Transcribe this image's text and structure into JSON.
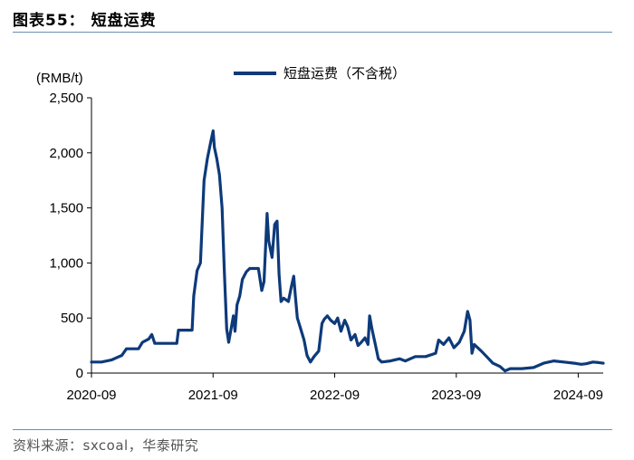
{
  "header": {
    "title": "图表55：  短盘运费"
  },
  "footer": {
    "source": "资料来源：sxcoal，华泰研究"
  },
  "chart_data": {
    "type": "line",
    "title": "",
    "ylabel": "(RMB/t)",
    "xlabel": "",
    "ylim": [
      0,
      2500
    ],
    "y_ticks": [
      0,
      500,
      1000,
      1500,
      2000,
      2500
    ],
    "y_tick_labels": [
      "0",
      "500",
      "1,000",
      "1,500",
      "2,000",
      "2,500"
    ],
    "x_ticks": [
      "2020-09-01",
      "2021-09-01",
      "2022-09-01",
      "2023-09-01",
      "2024-09-01"
    ],
    "x_tick_labels": [
      "2020-09",
      "2021-09",
      "2022-09",
      "2023-09",
      "2024-09"
    ],
    "legend_position": "top-center",
    "grid": false,
    "colors": {
      "series": "#0d3a7a",
      "axis": "#000000"
    },
    "series": [
      {
        "name": "短盘运费（不含税）",
        "points": [
          [
            "2020-09-01",
            100
          ],
          [
            "2020-10-01",
            100
          ],
          [
            "2020-11-01",
            120
          ],
          [
            "2020-12-01",
            160
          ],
          [
            "2020-12-15",
            220
          ],
          [
            "2021-01-20",
            220
          ],
          [
            "2021-02-01",
            280
          ],
          [
            "2021-02-20",
            310
          ],
          [
            "2021-03-01",
            350
          ],
          [
            "2021-03-10",
            270
          ],
          [
            "2021-04-10",
            270
          ],
          [
            "2021-05-15",
            270
          ],
          [
            "2021-05-20",
            390
          ],
          [
            "2021-06-30",
            390
          ],
          [
            "2021-07-05",
            700
          ],
          [
            "2021-07-15",
            930
          ],
          [
            "2021-07-25",
            1000
          ],
          [
            "2021-08-05",
            1750
          ],
          [
            "2021-08-15",
            1950
          ],
          [
            "2021-08-25",
            2100
          ],
          [
            "2021-09-01",
            2200
          ],
          [
            "2021-09-05",
            2050
          ],
          [
            "2021-09-12",
            1950
          ],
          [
            "2021-09-20",
            1800
          ],
          [
            "2021-09-28",
            1500
          ],
          [
            "2021-10-05",
            900
          ],
          [
            "2021-10-12",
            400
          ],
          [
            "2021-10-18",
            280
          ],
          [
            "2021-10-25",
            400
          ],
          [
            "2021-11-01",
            520
          ],
          [
            "2021-11-06",
            380
          ],
          [
            "2021-11-12",
            620
          ],
          [
            "2021-11-20",
            700
          ],
          [
            "2021-11-28",
            850
          ],
          [
            "2021-12-10",
            920
          ],
          [
            "2021-12-20",
            950
          ],
          [
            "2022-01-15",
            950
          ],
          [
            "2022-01-25",
            750
          ],
          [
            "2022-02-01",
            830
          ],
          [
            "2022-02-05",
            1100
          ],
          [
            "2022-02-10",
            1450
          ],
          [
            "2022-02-15",
            1200
          ],
          [
            "2022-02-25",
            1050
          ],
          [
            "2022-03-05",
            1350
          ],
          [
            "2022-03-12",
            1380
          ],
          [
            "2022-03-18",
            900
          ],
          [
            "2022-03-24",
            650
          ],
          [
            "2022-04-01",
            680
          ],
          [
            "2022-04-15",
            650
          ],
          [
            "2022-04-25",
            800
          ],
          [
            "2022-05-01",
            880
          ],
          [
            "2022-05-06",
            700
          ],
          [
            "2022-05-12",
            500
          ],
          [
            "2022-05-20",
            420
          ],
          [
            "2022-06-01",
            300
          ],
          [
            "2022-06-10",
            160
          ],
          [
            "2022-06-20",
            100
          ],
          [
            "2022-07-01",
            150
          ],
          [
            "2022-07-15",
            200
          ],
          [
            "2022-07-25",
            450
          ],
          [
            "2022-08-01",
            490
          ],
          [
            "2022-08-10",
            520
          ],
          [
            "2022-08-20",
            480
          ],
          [
            "2022-09-01",
            450
          ],
          [
            "2022-09-10",
            500
          ],
          [
            "2022-09-20",
            380
          ],
          [
            "2022-10-01",
            480
          ],
          [
            "2022-10-10",
            420
          ],
          [
            "2022-10-20",
            300
          ],
          [
            "2022-11-01",
            350
          ],
          [
            "2022-11-10",
            250
          ],
          [
            "2022-11-20",
            280
          ],
          [
            "2022-12-01",
            320
          ],
          [
            "2022-12-10",
            260
          ],
          [
            "2022-12-15",
            520
          ],
          [
            "2022-12-22",
            400
          ],
          [
            "2023-01-01",
            260
          ],
          [
            "2023-01-10",
            130
          ],
          [
            "2023-01-20",
            100
          ],
          [
            "2023-02-15",
            110
          ],
          [
            "2023-03-15",
            130
          ],
          [
            "2023-04-01",
            110
          ],
          [
            "2023-05-01",
            150
          ],
          [
            "2023-06-01",
            150
          ],
          [
            "2023-07-01",
            180
          ],
          [
            "2023-07-10",
            300
          ],
          [
            "2023-07-25",
            260
          ],
          [
            "2023-08-10",
            320
          ],
          [
            "2023-08-25",
            230
          ],
          [
            "2023-09-10",
            280
          ],
          [
            "2023-09-25",
            380
          ],
          [
            "2023-10-05",
            560
          ],
          [
            "2023-10-12",
            480
          ],
          [
            "2023-10-18",
            180
          ],
          [
            "2023-10-25",
            260
          ],
          [
            "2023-11-15",
            200
          ],
          [
            "2023-12-01",
            150
          ],
          [
            "2023-12-20",
            90
          ],
          [
            "2024-01-10",
            60
          ],
          [
            "2024-01-25",
            20
          ],
          [
            "2024-02-10",
            40
          ],
          [
            "2024-03-15",
            40
          ],
          [
            "2024-04-20",
            50
          ],
          [
            "2024-05-20",
            90
          ],
          [
            "2024-06-20",
            110
          ],
          [
            "2024-07-20",
            100
          ],
          [
            "2024-08-20",
            90
          ],
          [
            "2024-09-10",
            80
          ],
          [
            "2024-09-25",
            85
          ],
          [
            "2024-10-15",
            100
          ],
          [
            "2024-11-01",
            95
          ],
          [
            "2024-11-15",
            90
          ]
        ]
      }
    ]
  }
}
